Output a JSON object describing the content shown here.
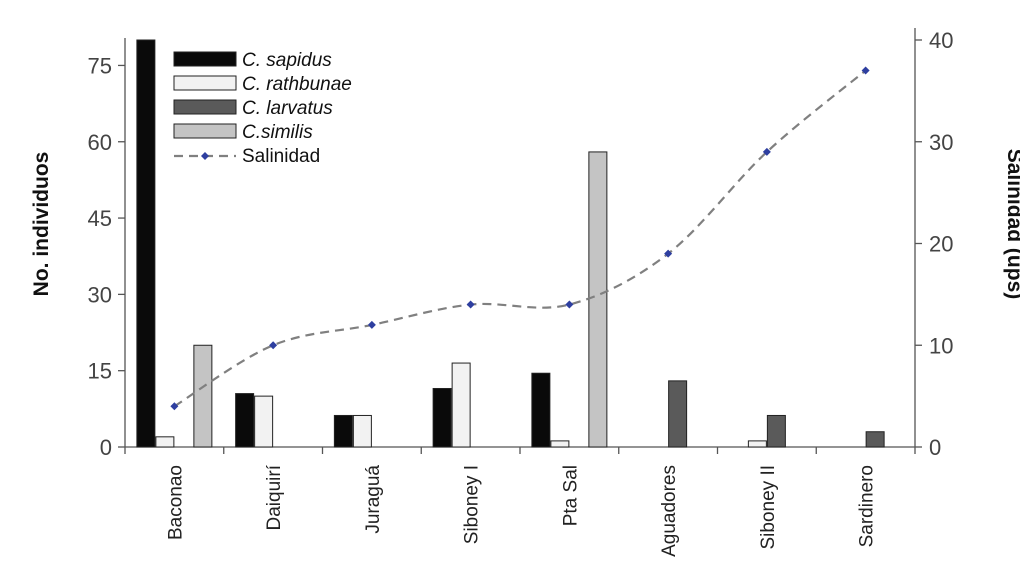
{
  "chart_data": {
    "type": "bar",
    "categories": [
      "Baconao",
      "Daiquirí",
      "Juraguá",
      "Siboney I",
      "Pta Sal",
      "Aguadores",
      "Siboney II",
      "Sardinero"
    ],
    "series": [
      {
        "name": "C. sapidus",
        "values": [
          80,
          10.5,
          6.2,
          11.5,
          14.5,
          0,
          0,
          0
        ],
        "color": "#0a0a0a"
      },
      {
        "name": "C. rathbunae",
        "values": [
          2,
          10,
          6.2,
          16.5,
          1.2,
          0,
          1.2,
          0
        ],
        "color": "#f2f2f2"
      },
      {
        "name": "C. larvatus",
        "values": [
          0,
          0,
          0,
          0,
          0,
          13,
          6.2,
          3
        ],
        "color": "#5a5a5a"
      },
      {
        "name": "C.similis",
        "values": [
          20,
          0,
          0,
          0,
          58,
          0,
          0,
          0
        ],
        "color": "#c4c4c4"
      }
    ],
    "line_series": {
      "name": "Salinidad",
      "values": [
        4,
        10,
        12,
        14,
        14,
        19,
        29,
        37
      ],
      "color": "#2e3fa0",
      "line_color": "#808080",
      "dashed": true,
      "axis": "right"
    },
    "ylabel": "No. individuos",
    "ylabel_right": "Salinidad (ups)",
    "ylim": [
      0,
      80
    ],
    "yticks": [
      "0",
      "15",
      "30",
      "45",
      "60",
      "75"
    ],
    "ylim_right": [
      0,
      40
    ],
    "yticks_right": [
      "0",
      "10",
      "20",
      "30",
      "40"
    ],
    "legend_position": "top-left",
    "grid": false
  }
}
